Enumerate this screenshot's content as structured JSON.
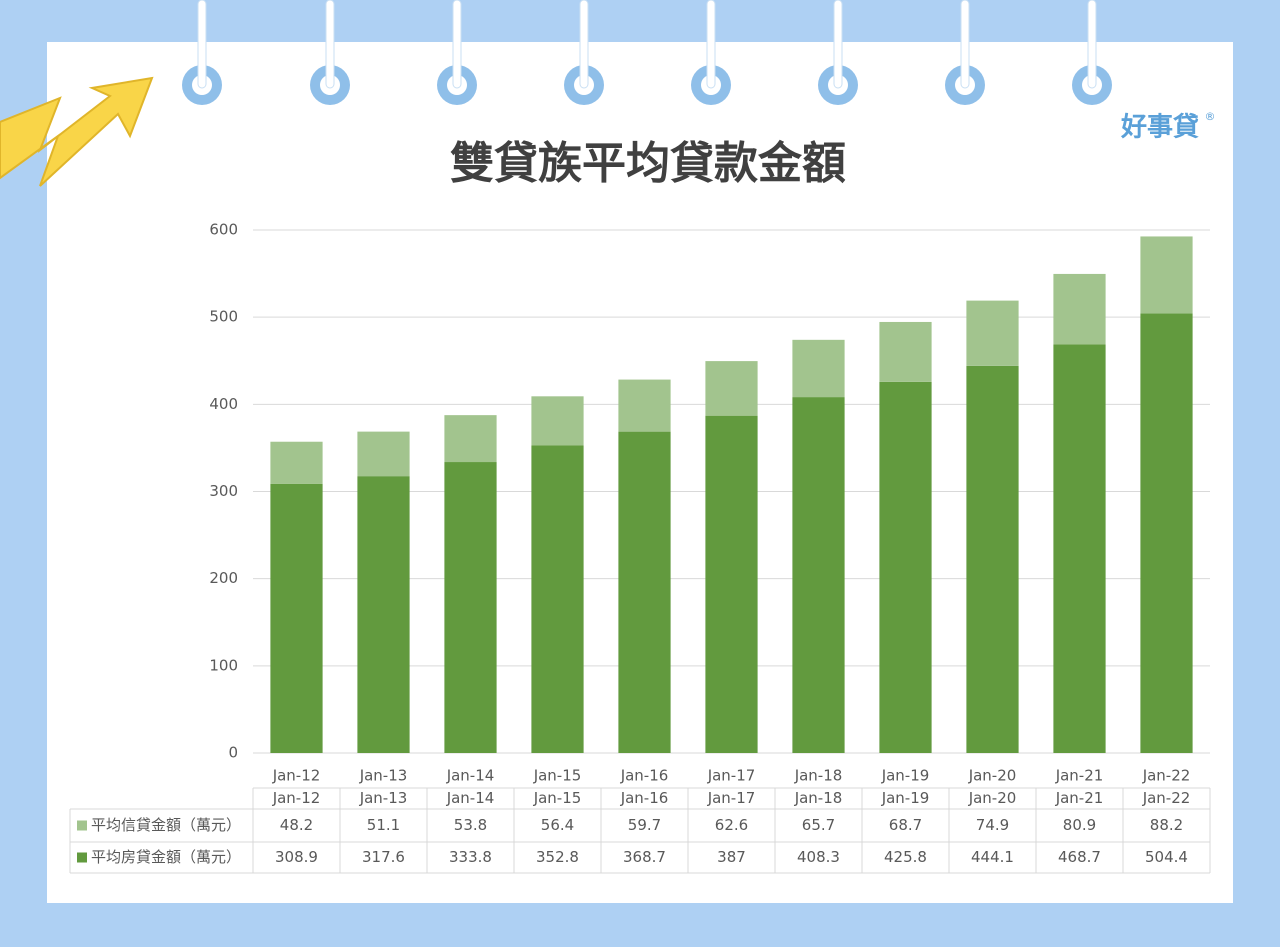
{
  "logo": "好事貸",
  "logo_mark": "®",
  "chart_data": {
    "type": "bar",
    "stacked": true,
    "title": "雙貸族平均貸款金額",
    "categories": [
      "Jan-12",
      "Jan-13",
      "Jan-14",
      "Jan-15",
      "Jan-16",
      "Jan-17",
      "Jan-18",
      "Jan-19",
      "Jan-20",
      "Jan-21",
      "Jan-22"
    ],
    "series": [
      {
        "name": "平均信貸金額（萬元）",
        "color": "#a2c48e",
        "values": [
          48.2,
          51.1,
          53.8,
          56.4,
          59.7,
          62.6,
          65.7,
          68.7,
          74.9,
          80.9,
          88.2
        ]
      },
      {
        "name": "平均房貸金額（萬元）",
        "color": "#629a3e",
        "values": [
          308.9,
          317.6,
          333.8,
          352.8,
          368.7,
          387,
          408.3,
          425.8,
          444.1,
          468.7,
          504.4
        ]
      }
    ],
    "ylim": [
      0,
      600
    ],
    "yticks": [
      0,
      100,
      200,
      300,
      400,
      500,
      600
    ],
    "grid": true,
    "data_table": true
  }
}
